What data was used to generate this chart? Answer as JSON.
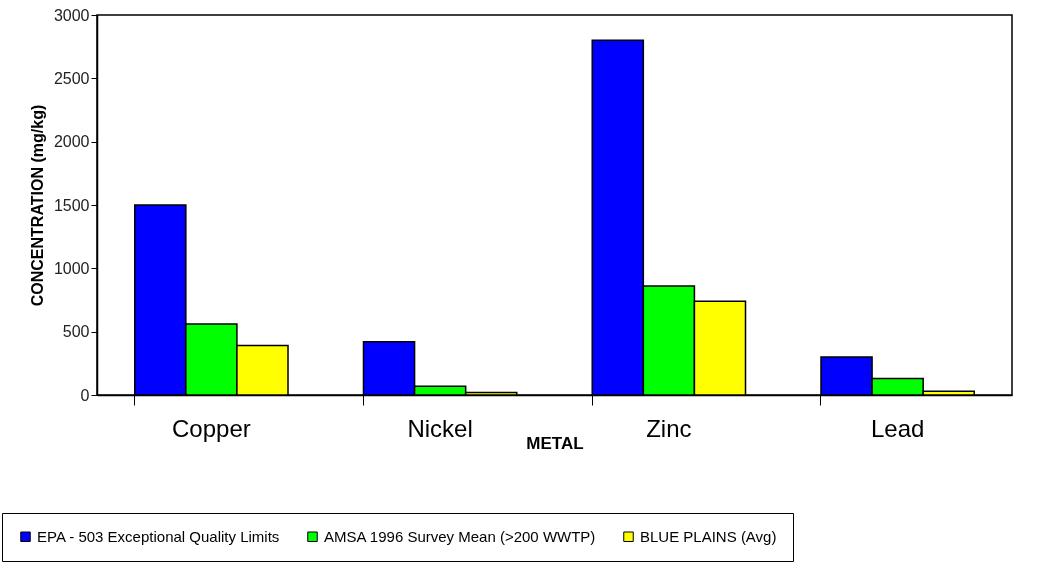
{
  "chart_data": {
    "type": "bar",
    "xlabel": "METAL",
    "ylabel": "CONCENTRATION (mg/kg)",
    "categories": [
      "Copper",
      "Nickel",
      "Zinc",
      "Lead"
    ],
    "series": [
      {
        "name": "EPA - 503 Exceptional Quality Limits",
        "color": "#0000ff",
        "values": [
          1500,
          420,
          2800,
          300
        ]
      },
      {
        "name": "AMSA 1996 Survey Mean (>200 WWTP)",
        "color": "#00ff00",
        "values": [
          560,
          70,
          860,
          130
        ]
      },
      {
        "name": "BLUE PLAINS (Avg)",
        "color": "#ffff00",
        "values": [
          390,
          20,
          740,
          30
        ]
      }
    ],
    "ylim": [
      0,
      3000
    ],
    "yticks": [
      0,
      500,
      1000,
      1500,
      2000,
      2500,
      3000
    ],
    "grid": false,
    "legend": "bottom"
  }
}
